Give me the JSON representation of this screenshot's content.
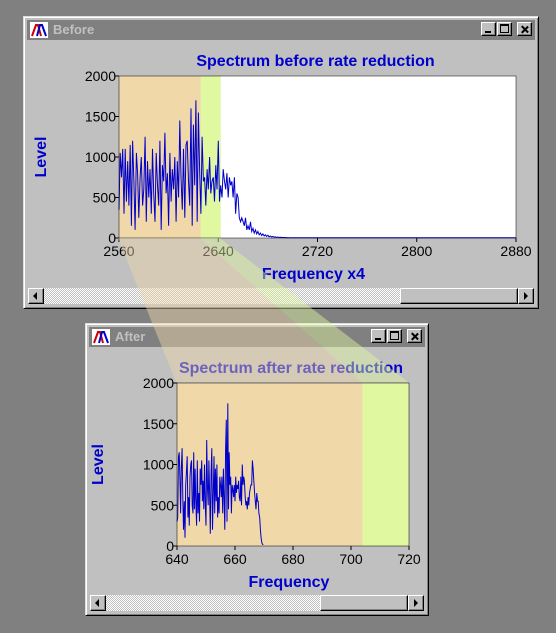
{
  "colors": {
    "desktop": "#808080",
    "window_face": "#c0c0c0",
    "titlebar_inactive": "#808080",
    "title_text": "#c0c0c0",
    "chart_text": "#0000cc",
    "series_line": "#0000cc",
    "band_orange": "#f0d8a8",
    "band_green": "#e0f8a0",
    "plot_bg": "#ffffff"
  },
  "windows": [
    {
      "id": "before",
      "title": "Before",
      "icon": "app-logo-icon",
      "buttons": [
        "minimize-icon",
        "maximize-icon",
        "close-icon"
      ]
    },
    {
      "id": "after",
      "title": "After",
      "icon": "app-logo-icon",
      "buttons": [
        "minimize-icon",
        "maximize-icon",
        "close-icon"
      ]
    }
  ],
  "chart_data": [
    {
      "type": "line",
      "title": "Spectrum before rate reduction",
      "xlabel": "Frequency x4",
      "ylabel": "Level",
      "xlim": [
        2560,
        2880
      ],
      "ylim": [
        0,
        2000
      ],
      "xticks": [
        2560,
        2640,
        2720,
        2800,
        2880
      ],
      "yticks": [
        0,
        500,
        1000,
        1500,
        2000
      ],
      "grid": false,
      "highlight_bands": [
        {
          "color": "orange",
          "x": [
            2560,
            2626
          ]
        },
        {
          "color": "green",
          "x": [
            2626,
            2642
          ]
        }
      ],
      "series": [
        {
          "x_start": 2560,
          "x_step": 1,
          "values": [
            350,
            1050,
            750,
            1100,
            300,
            1100,
            450,
            950,
            400,
            1150,
            150,
            1200,
            700,
            100,
            1050,
            800,
            250,
            750,
            1000,
            400,
            600,
            1250,
            200,
            950,
            500,
            850,
            300,
            1100,
            550,
            200,
            1050,
            650,
            400,
            1200,
            100,
            900,
            700,
            1300,
            550,
            800,
            150,
            1050,
            450,
            850,
            600,
            1000,
            200,
            950,
            500,
            1450,
            750,
            350,
            1100,
            250,
            1150,
            1200,
            700,
            400,
            1600,
            150,
            1400,
            650,
            1700,
            200,
            1550,
            850,
            300,
            1250,
            700,
            750,
            400,
            850,
            600,
            1000,
            550,
            700,
            750,
            450,
            900,
            600,
            1200,
            450,
            650,
            500,
            850,
            700,
            600,
            800,
            500,
            750,
            650,
            700,
            500,
            750,
            300,
            550,
            500,
            250,
            200,
            250,
            200,
            150,
            250,
            100,
            150,
            100,
            200,
            80,
            120,
            60,
            100,
            50,
            80,
            40,
            60,
            30,
            50,
            25,
            40,
            20,
            35,
            15,
            25,
            12,
            20,
            10,
            15,
            8,
            12,
            6,
            10,
            5,
            8,
            5,
            6,
            4,
            5,
            4,
            4,
            3,
            3,
            3,
            2,
            2,
            2,
            2,
            2,
            2,
            2,
            2,
            2,
            2,
            2,
            2,
            2,
            2,
            2,
            2,
            2,
            2,
            2,
            2,
            2,
            2,
            2,
            2,
            2,
            2,
            2,
            2,
            2,
            2,
            2,
            2,
            2,
            2,
            2,
            2,
            2,
            2,
            2,
            2,
            2,
            2,
            2,
            2,
            2,
            2,
            2,
            2,
            2,
            2,
            2,
            2,
            2,
            2,
            2,
            2,
            2,
            2,
            2,
            2,
            2,
            2,
            2,
            2,
            2,
            2,
            2,
            2,
            2,
            2,
            2,
            2,
            2,
            2,
            2,
            2,
            2,
            2,
            2,
            2,
            2,
            2,
            2,
            2,
            2,
            2,
            2,
            2,
            2,
            2,
            2,
            2,
            2,
            2,
            2,
            2,
            2,
            2,
            2,
            2,
            2,
            2,
            2,
            2,
            2,
            2,
            2,
            2,
            2,
            2,
            2,
            2,
            2,
            2,
            2,
            2,
            2,
            2,
            2,
            2,
            2,
            2,
            2,
            2,
            2,
            2,
            2,
            2,
            2,
            2,
            2,
            2,
            2,
            2,
            2,
            2,
            2,
            2,
            2,
            2,
            2,
            2,
            2,
            2,
            2,
            2,
            2,
            2,
            2,
            2,
            2,
            2,
            2,
            2,
            2,
            2,
            2,
            2,
            2,
            2,
            2,
            2,
            2,
            2,
            2,
            2,
            2,
            2,
            2,
            2,
            2,
            2,
            2,
            2,
            2,
            2,
            2,
            2,
            2,
            2,
            2,
            2,
            2,
            2,
            2,
            2,
            2,
            2,
            2,
            2,
            2,
            2,
            2,
            2,
            2,
            2,
            2,
            2,
            2,
            2,
            2
          ]
        }
      ]
    },
    {
      "type": "line",
      "title": "Spectrum after rate reduction",
      "xlabel": "Frequency",
      "ylabel": "Level",
      "xlim": [
        640,
        720
      ],
      "ylim": [
        0,
        2000
      ],
      "xticks": [
        640,
        660,
        680,
        700,
        720
      ],
      "yticks": [
        0,
        500,
        1000,
        1500,
        2000
      ],
      "grid": false,
      "highlight_bands": [
        {
          "color": "orange",
          "x": [
            640,
            704
          ]
        },
        {
          "color": "green",
          "x": [
            704,
            720
          ]
        }
      ],
      "series": [
        {
          "x_start": 640,
          "x_step": 0.25,
          "values": [
            300,
            350,
            1100,
            1150,
            850,
            400,
            950,
            1200,
            600,
            200,
            550,
            100,
            750,
            900,
            1100,
            350,
            600,
            250,
            850,
            1000,
            1050,
            500,
            400,
            1150,
            450,
            950,
            550,
            250,
            1050,
            400,
            650,
            300,
            950,
            750,
            1050,
            550,
            800,
            450,
            1000,
            500,
            250,
            1300,
            700,
            500,
            1050,
            650,
            150,
            900,
            1200,
            200,
            650,
            1100,
            400,
            950,
            550,
            1000,
            350,
            600,
            400,
            850,
            750,
            600,
            850,
            400,
            950,
            600,
            200,
            1200,
            1550,
            300,
            1750,
            450,
            1150,
            750,
            850,
            400,
            750,
            700,
            600,
            750,
            550,
            850,
            650,
            750,
            700,
            800,
            600,
            550,
            850,
            500,
            1000,
            750,
            850,
            800,
            600,
            500,
            550,
            450,
            600,
            500,
            650,
            700,
            750,
            750,
            1050,
            950,
            800,
            650,
            550,
            450,
            650,
            550,
            550,
            400,
            350,
            200,
            100,
            40,
            20,
            15
          ]
        }
      ]
    }
  ]
}
